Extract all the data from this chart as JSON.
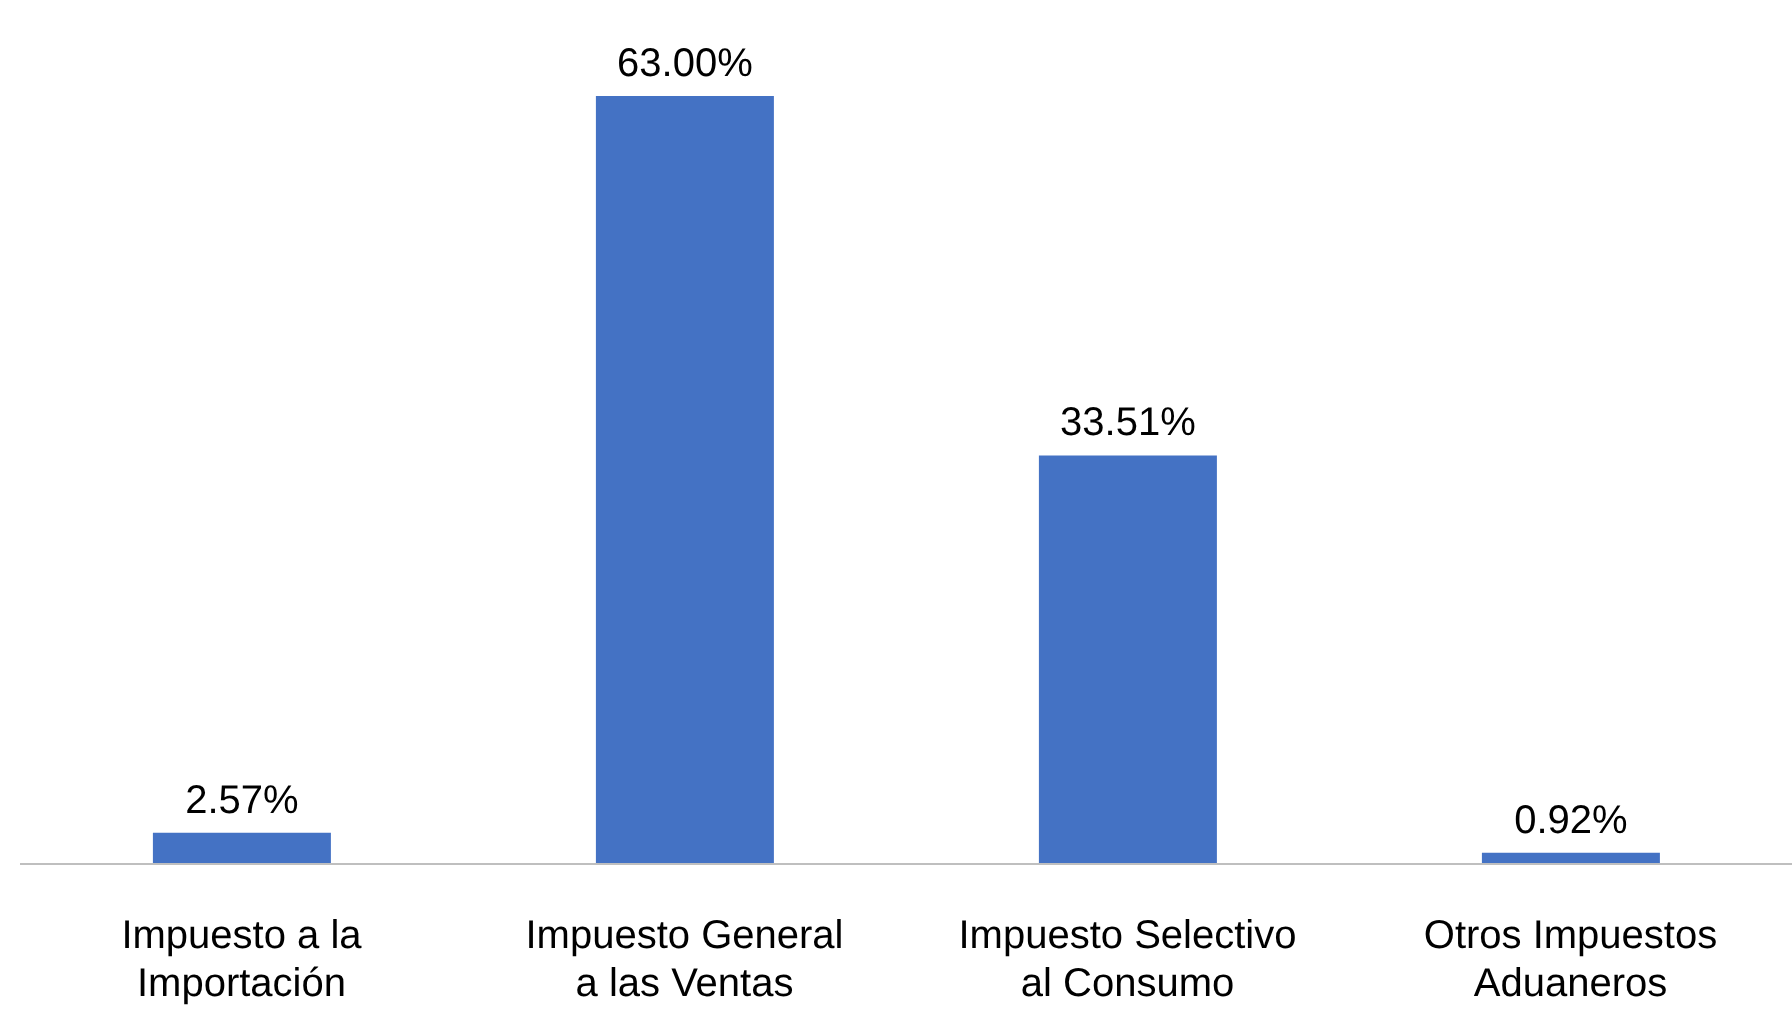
{
  "chart_data": {
    "type": "bar",
    "categories": [
      "Impuesto a la Importación",
      "Impuesto General a las Ventas",
      "Impuesto Selectivo al Consumo",
      "Otros Impuestos Aduaneros"
    ],
    "values": [
      2.57,
      63.0,
      33.51,
      0.92
    ],
    "value_labels": [
      "2.57%",
      "63.00%",
      "33.51%",
      "0.92%"
    ],
    "color": "#4472c4"
  }
}
